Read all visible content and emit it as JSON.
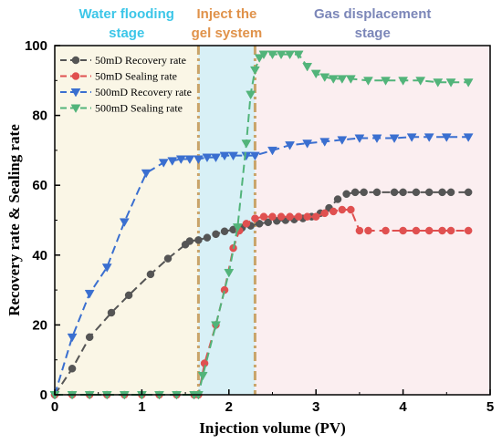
{
  "chart_data": {
    "type": "line",
    "xlabel": "Injection volume (PV)",
    "ylabel": "Recovery rate & Sealing rate",
    "xlim": [
      0,
      5
    ],
    "ylim": [
      0,
      100
    ],
    "xticks": [
      "0",
      "1",
      "2",
      "3",
      "4",
      "5"
    ],
    "yticks": [
      "0",
      "20",
      "40",
      "60",
      "80",
      "100"
    ],
    "grid": false,
    "legend_position": "top-left",
    "stages": [
      {
        "label_line1": "Water flooding",
        "label_line2": "stage",
        "x_start": 0,
        "x_end": 1.65,
        "fill": "#faf6e6",
        "text_color": "#3cc6e8"
      },
      {
        "label_line1": "Inject the",
        "label_line2": "gel system",
        "x_start": 1.65,
        "x_end": 2.3,
        "fill": "#d8f0f6",
        "text_color": "#e0924a"
      },
      {
        "label_line1": "Gas displacement",
        "label_line2": "stage",
        "x_start": 2.3,
        "x_end": 5,
        "fill": "#fbeef0",
        "text_color": "#7b86b8"
      }
    ],
    "boundaries": [
      1.65,
      2.3
    ],
    "boundary_color": "#c9a46a",
    "series": [
      {
        "name": "50mD Recovery rate",
        "color": "#555555",
        "marker": "circle",
        "x": [
          0,
          0.2,
          0.4,
          0.65,
          0.85,
          1.1,
          1.3,
          1.5,
          1.55,
          1.65,
          1.75,
          1.85,
          1.95,
          2.05,
          2.15,
          2.25,
          2.35,
          2.45,
          2.55,
          2.65,
          2.75,
          2.85,
          2.95,
          3.05,
          3.15,
          3.25,
          3.35,
          3.45,
          3.55,
          3.7,
          3.9,
          4.0,
          4.15,
          4.3,
          4.45,
          4.55,
          4.75
        ],
        "y": [
          0,
          7.5,
          16.5,
          23.5,
          28.5,
          34.5,
          39,
          43,
          44,
          44.3,
          45,
          46,
          46.8,
          47.3,
          47.8,
          48.4,
          49,
          49.4,
          49.8,
          50,
          50.2,
          50.5,
          51,
          52,
          53.5,
          56,
          57.5,
          58,
          58,
          58,
          58,
          58,
          58,
          58,
          58,
          58,
          58
        ]
      },
      {
        "name": "50mD Sealing rate",
        "color": "#e05050",
        "marker": "circle",
        "x": [
          0,
          0.2,
          0.4,
          0.6,
          0.8,
          1.0,
          1.2,
          1.4,
          1.6,
          1.65,
          1.72,
          1.85,
          1.95,
          2.05,
          2.12,
          2.2,
          2.3,
          2.4,
          2.5,
          2.6,
          2.7,
          2.8,
          2.9,
          3.0,
          3.1,
          3.2,
          3.3,
          3.4,
          3.5,
          3.6,
          3.8,
          4.0,
          4.15,
          4.3,
          4.45,
          4.55,
          4.75
        ],
        "y": [
          0,
          0,
          0,
          0,
          0,
          0,
          0,
          0,
          0,
          0,
          9,
          20,
          30,
          42,
          47,
          49,
          50.5,
          51,
          51,
          51,
          51,
          51,
          51,
          51,
          52,
          52.5,
          53,
          53,
          47,
          47,
          47,
          47,
          47,
          47,
          47,
          47,
          47
        ]
      },
      {
        "name": "500mD Recovery rate",
        "color": "#3a6fd0",
        "marker": "triangle-down",
        "x": [
          0,
          0.2,
          0.4,
          0.6,
          0.8,
          1.05,
          1.25,
          1.35,
          1.45,
          1.55,
          1.65,
          1.75,
          1.85,
          1.95,
          2.05,
          2.2,
          2.3,
          2.5,
          2.7,
          2.9,
          3.1,
          3.3,
          3.5,
          3.7,
          3.9,
          4.1,
          4.3,
          4.5,
          4.75
        ],
        "y": [
          0,
          16.5,
          29,
          36.5,
          49.5,
          63.5,
          66.5,
          67,
          67.5,
          67.5,
          67.5,
          68,
          68,
          68.5,
          68.5,
          68.5,
          68.5,
          70,
          71.5,
          72,
          72.5,
          73,
          73.5,
          73.5,
          73.5,
          73.8,
          73.8,
          73.8,
          73.8
        ]
      },
      {
        "name": "500mD Sealing rate",
        "color": "#52b47a",
        "marker": "triangle-down",
        "x": [
          0,
          0.2,
          0.4,
          0.6,
          0.8,
          1.0,
          1.2,
          1.4,
          1.6,
          1.65,
          1.7,
          1.85,
          2.0,
          2.1,
          2.2,
          2.25,
          2.3,
          2.35,
          2.4,
          2.5,
          2.6,
          2.7,
          2.8,
          2.9,
          3.0,
          3.1,
          3.2,
          3.3,
          3.4,
          3.6,
          3.8,
          4.0,
          4.2,
          4.4,
          4.55,
          4.75
        ],
        "y": [
          0,
          0,
          0,
          0,
          0,
          0,
          0,
          0,
          0,
          0,
          5.5,
          20,
          35,
          48,
          72,
          86,
          93,
          96.5,
          97.5,
          97.5,
          97.5,
          97.5,
          97.5,
          94,
          92,
          91,
          90.5,
          90.5,
          90.5,
          90,
          90,
          90,
          90,
          89.5,
          89.5,
          89.5
        ]
      }
    ]
  }
}
